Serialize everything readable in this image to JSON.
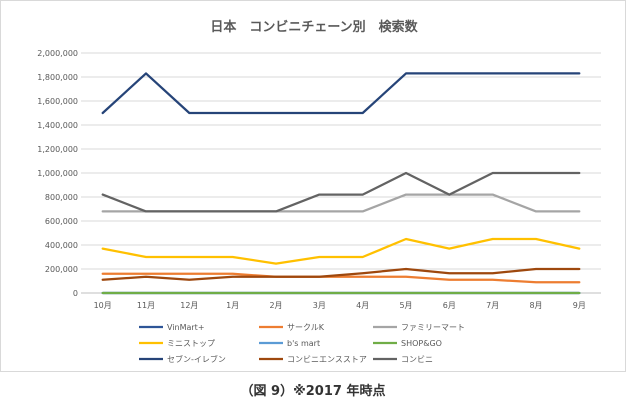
{
  "chart_data": {
    "type": "line",
    "title": "日本　コンビニチェーン別　検索数",
    "xlabel": "",
    "ylabel": "",
    "categories": [
      "10月",
      "11月",
      "12月",
      "1月",
      "2月",
      "3月",
      "4月",
      "5月",
      "6月",
      "7月",
      "8月",
      "9月"
    ],
    "ylim": [
      0,
      2000000
    ],
    "yticks": [
      0,
      200000,
      400000,
      600000,
      800000,
      1000000,
      1200000,
      1400000,
      1600000,
      1800000,
      2000000
    ],
    "ytick_labels": [
      "0",
      "200,000",
      "400,000",
      "600,000",
      "800,000",
      "1,000,000",
      "1,200,000",
      "1,400,000",
      "1,600,000",
      "1,800,000",
      "2,000,000"
    ],
    "grid": "horizontal",
    "legend_position": "bottom",
    "series": [
      {
        "name": "VinMart+",
        "color": "#2e5597",
        "values": [
          0,
          0,
          0,
          0,
          0,
          0,
          0,
          0,
          0,
          0,
          0,
          0
        ]
      },
      {
        "name": "サークルK",
        "color": "#ed7d31",
        "values": [
          160000,
          160000,
          160000,
          160000,
          135000,
          135000,
          135000,
          135000,
          110000,
          110000,
          90000,
          90000
        ]
      },
      {
        "name": "ファミリーマート",
        "color": "#a5a5a5",
        "values": [
          680000,
          680000,
          680000,
          680000,
          680000,
          680000,
          680000,
          820000,
          820000,
          820000,
          680000,
          680000
        ]
      },
      {
        "name": "ミニストップ",
        "color": "#ffc000",
        "values": [
          370000,
          300000,
          300000,
          300000,
          245000,
          300000,
          300000,
          450000,
          370000,
          450000,
          450000,
          370000
        ]
      },
      {
        "name": "b's mart",
        "color": "#5b9bd5",
        "values": [
          0,
          0,
          0,
          0,
          0,
          0,
          0,
          0,
          0,
          0,
          0,
          0
        ]
      },
      {
        "name": "SHOP&GO",
        "color": "#70ad47",
        "values": [
          0,
          0,
          0,
          0,
          0,
          0,
          0,
          0,
          0,
          0,
          0,
          0
        ]
      },
      {
        "name": "セブン-イレブン",
        "color": "#264478",
        "values": [
          1500000,
          1830000,
          1500000,
          1500000,
          1500000,
          1500000,
          1500000,
          1830000,
          1830000,
          1830000,
          1830000,
          1830000
        ]
      },
      {
        "name": "コンビニエンスストア",
        "color": "#9e480e",
        "values": [
          110000,
          135000,
          110000,
          135000,
          135000,
          135000,
          165000,
          200000,
          165000,
          165000,
          200000,
          200000
        ]
      },
      {
        "name": "コンビニ",
        "color": "#636363",
        "values": [
          820000,
          680000,
          680000,
          680000,
          680000,
          820000,
          820000,
          1000000,
          820000,
          1000000,
          1000000,
          1000000
        ]
      }
    ]
  },
  "caption": "（図 9）※2017 年時点"
}
